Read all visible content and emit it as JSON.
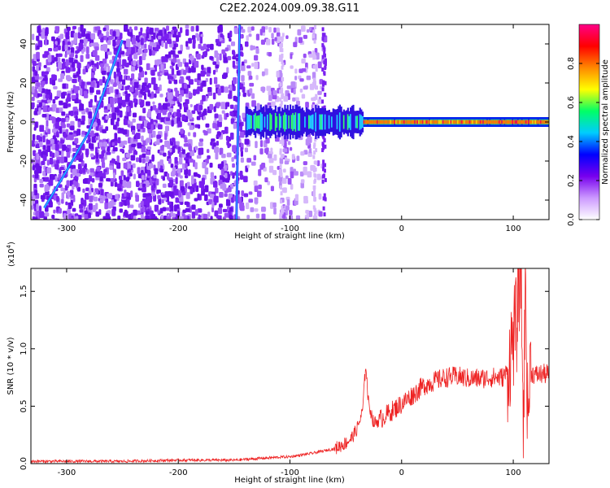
{
  "title": "C2E2.2024.009.09.38.G11",
  "colors": {
    "snr_line": "#ee2222",
    "spectrogram_noise": "#6a10e8",
    "axis": "#000000"
  },
  "chart_data": [
    {
      "type": "heatmap",
      "name": "spectrogram",
      "xlabel": "Height of straight line (km)",
      "ylabel": "Frequency (Hz)",
      "xlim": [
        -332,
        132
      ],
      "ylim": [
        -50,
        50
      ],
      "x_ticks": [
        -300,
        -200,
        -100,
        0,
        100
      ],
      "x_tick_labels": [
        "-300",
        "-200",
        "-100",
        "0",
        "100"
      ],
      "y_ticks": [
        -40,
        -20,
        0,
        20,
        40
      ],
      "y_tick_labels": [
        "-40",
        "-20",
        "0",
        "20",
        "40"
      ],
      "colorbar": {
        "label": "Normalized spectral amplitude",
        "range": [
          0,
          1
        ],
        "ticks": [
          0.0,
          0.2,
          0.4,
          0.6,
          0.8
        ],
        "tick_labels": [
          "0.0",
          "0.2",
          "0.4",
          "0.6",
          "0.8"
        ],
        "stops": [
          "#ffffff",
          "#cc99ff",
          "#7700ee",
          "#0000ff",
          "#00ccff",
          "#00ff66",
          "#ffff00",
          "#ff8800",
          "#ff0000",
          "#ff0088"
        ]
      },
      "features": {
        "noise_region_x": [
          -332,
          -70
        ],
        "strong_line_x": [
          -147,
          -143
        ],
        "diagonal_trace": {
          "x": [
            -320,
            -300,
            -280,
            -265,
            -250
          ],
          "y": [
            -44,
            -25,
            -5,
            18,
            42
          ]
        },
        "carrier": {
          "x_start": -140,
          "x_end": 132,
          "freq": 0,
          "bright_from_x": -35
        }
      }
    },
    {
      "type": "line",
      "name": "snr",
      "xlabel": "Height of straight line (km)",
      "ylabel": "SNR (10 * v/v)",
      "y_scale_label": "(x10",
      "y_scale_exp": "4",
      "y_scale_close": ")",
      "xlim": [
        -332,
        132
      ],
      "ylim": [
        0,
        1.7
      ],
      "x_ticks": [
        -300,
        -200,
        -100,
        0,
        100
      ],
      "x_tick_labels": [
        "-300",
        "-200",
        "-100",
        "0",
        "100"
      ],
      "y_ticks": [
        0.0,
        0.5,
        1.0,
        1.5
      ],
      "y_tick_labels": [
        "0.0",
        "0.5",
        "1.0",
        "1.5"
      ],
      "series": [
        {
          "x": [
            -332,
            -300,
            -250,
            -200,
            -150,
            -120,
            -100,
            -80,
            -60,
            -50,
            -45,
            -40,
            -35,
            -32,
            -30,
            -25,
            -20,
            -10,
            0,
            10,
            20,
            30,
            40,
            50,
            60,
            70,
            80,
            90,
            95,
            100,
            103,
            105,
            107,
            109,
            111,
            113,
            115,
            120,
            125,
            132
          ],
          "y": [
            0.02,
            0.02,
            0.02,
            0.03,
            0.03,
            0.05,
            0.06,
            0.09,
            0.13,
            0.18,
            0.22,
            0.3,
            0.45,
            0.88,
            0.55,
            0.35,
            0.38,
            0.45,
            0.52,
            0.6,
            0.68,
            0.72,
            0.75,
            0.76,
            0.74,
            0.74,
            0.75,
            0.75,
            0.8,
            1.1,
            1.2,
            1.55,
            1.7,
            0.25,
            1.6,
            0.35,
            0.8,
            0.77,
            0.78,
            0.78
          ]
        }
      ]
    }
  ]
}
